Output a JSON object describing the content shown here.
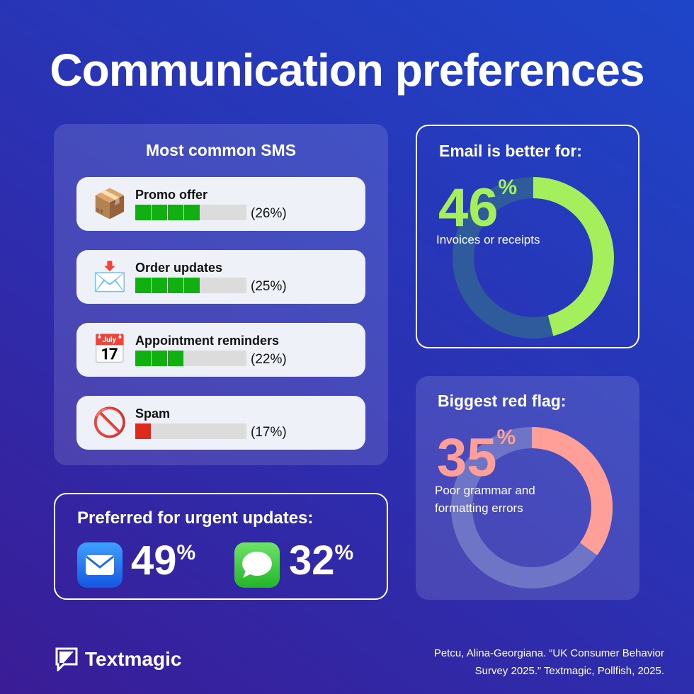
{
  "title": "Communication preferences",
  "sms": {
    "heading": "Most common SMS",
    "items": [
      {
        "icon": "package-icon",
        "emoji": "📦",
        "label": "Promo offer",
        "percent": "(26%)",
        "value": 26,
        "segments": 4,
        "color": "#10b010"
      },
      {
        "icon": "incoming-envelope-icon",
        "emoji": "📩",
        "label": "Order updates",
        "percent": "(25%)",
        "value": 25,
        "segments": 4,
        "color": "#10b010"
      },
      {
        "icon": "calendar-icon",
        "emoji": "📅",
        "label": "Appointment reminders",
        "percent": "(22%)",
        "value": 22,
        "segments": 3,
        "color": "#10b010"
      },
      {
        "icon": "prohibited-icon",
        "emoji": "🚫",
        "label": "Spam",
        "percent": "(17%)",
        "value": 17,
        "segments": 1,
        "color": "#dd2a1a"
      }
    ]
  },
  "urgent": {
    "heading": "Preferred for urgent updates:",
    "mail": {
      "value": "49",
      "unit": "%"
    },
    "messages": {
      "value": "32",
      "unit": "%"
    }
  },
  "email": {
    "heading": "Email is better for:",
    "value": "46",
    "unit": "%",
    "fraction": 0.46,
    "caption": "Invoices or receipts",
    "color": "#a6ef5c",
    "track": "#2f5b9c"
  },
  "flag": {
    "heading": "Biggest red flag:",
    "value": "35",
    "unit": "%",
    "fraction": 0.35,
    "caption1": "Poor grammar and",
    "caption2": "formatting errors",
    "color": "#ff9f97",
    "track": "#6e74c6"
  },
  "footer": {
    "brand": "Textmagic",
    "cite1": "Petcu, Alina-Georgiana. “UK Consumer Behavior",
    "cite2": "Survey 2025.” Textmagic, Pollfish, 2025."
  }
}
